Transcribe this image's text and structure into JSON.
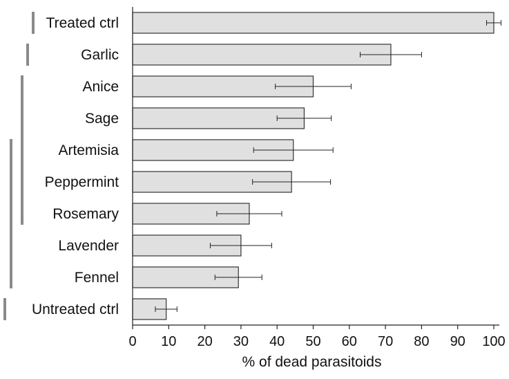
{
  "chart_data": {
    "type": "bar",
    "orientation": "horizontal",
    "categories": [
      "Treated ctrl",
      "Garlic",
      "Anice",
      "Sage",
      "Artemisia",
      "Peppermint",
      "Rosemary",
      "Lavender",
      "Fennel",
      "Untreated ctrl"
    ],
    "values": [
      100,
      71.5,
      50,
      47.5,
      44.5,
      44,
      32.3,
      30,
      29.3,
      9.3
    ],
    "errors": [
      2,
      8.5,
      10.5,
      7.5,
      11,
      10.8,
      9,
      8.5,
      6.5,
      3
    ],
    "xlabel": "% of dead parasitoids",
    "xlim": [
      0,
      100
    ],
    "xticks": [
      "0",
      "10",
      "20",
      "30",
      "40",
      "50",
      "60",
      "70",
      "80",
      "90",
      "100"
    ],
    "bar_color": "#e0e0e0",
    "grid": false,
    "group_brackets": [
      {
        "first": 0,
        "last": 0
      },
      {
        "first": 1,
        "last": 1
      },
      {
        "first": 2,
        "last": 6
      },
      {
        "first": 4,
        "last": 8
      },
      {
        "first": 9,
        "last": 9
      }
    ]
  }
}
